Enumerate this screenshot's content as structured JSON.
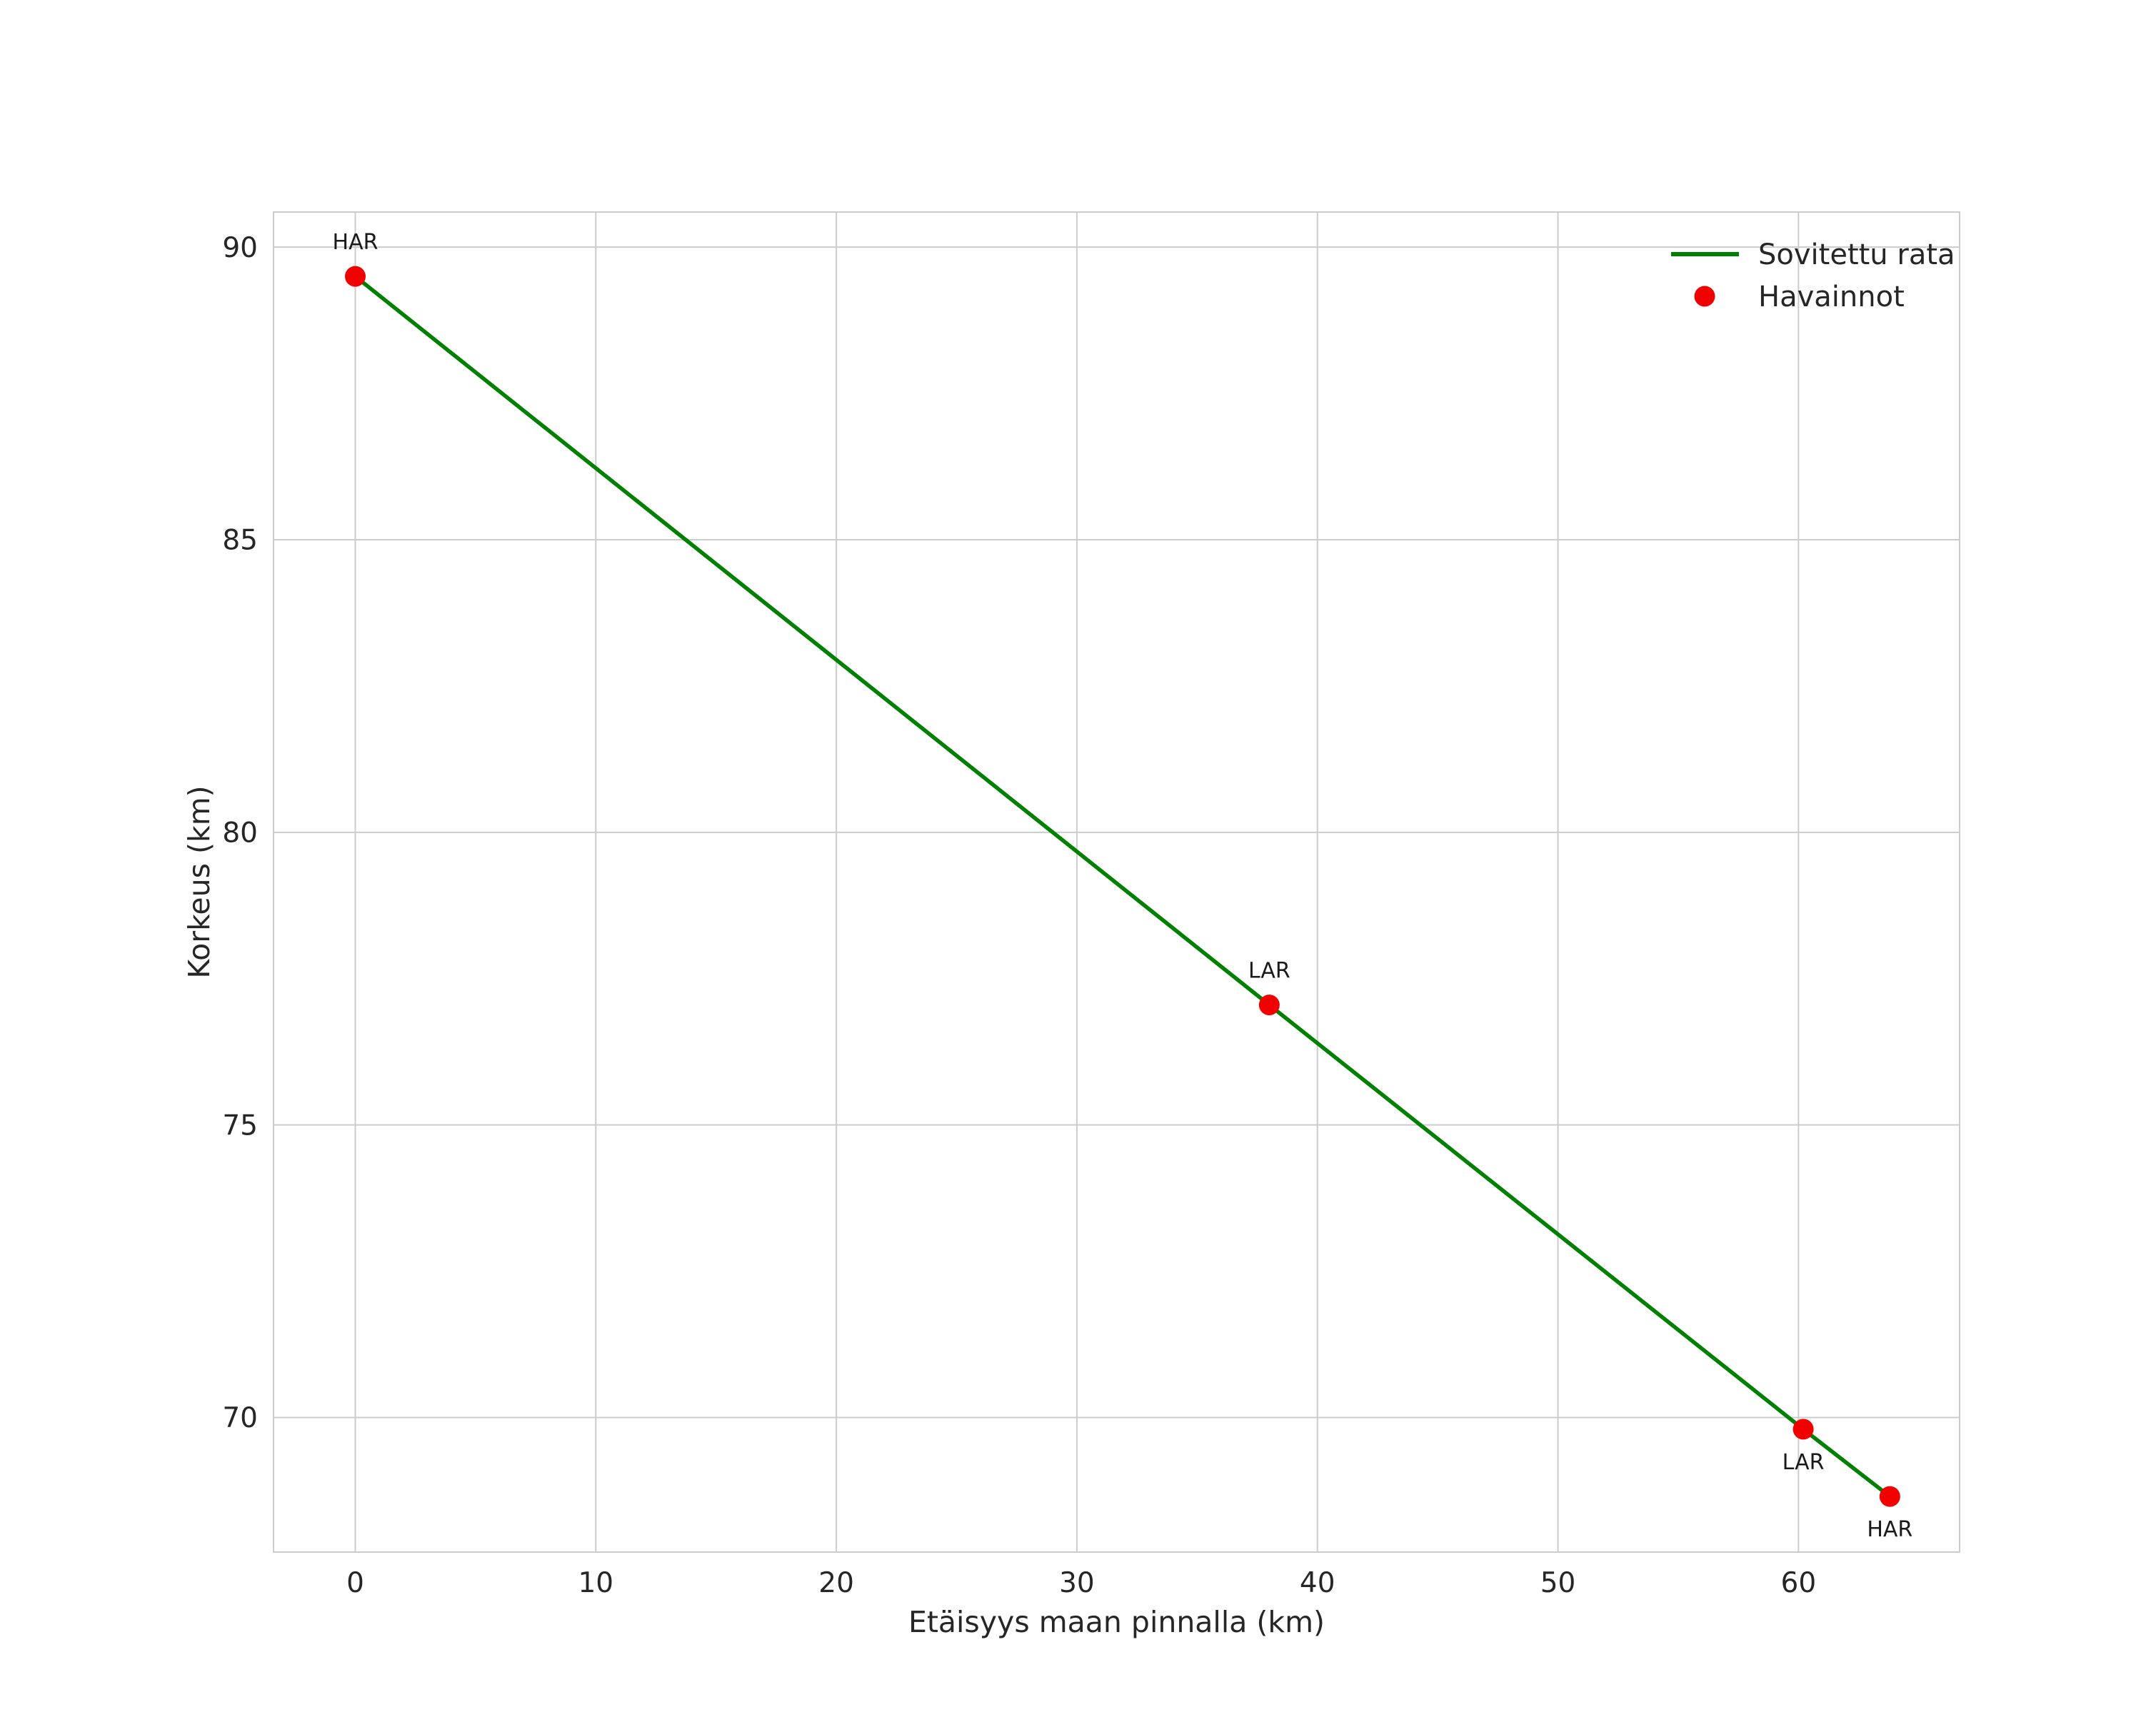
{
  "chart_data": {
    "type": "line",
    "title": "",
    "xlabel": "Etäisyys maan pinnalla (km)",
    "ylabel": "Korkeus (km)",
    "xlim": [
      -3.4,
      66.7
    ],
    "ylim": [
      67.7,
      90.6
    ],
    "x_ticks": [
      0,
      10,
      20,
      30,
      40,
      50,
      60
    ],
    "y_ticks": [
      70,
      75,
      80,
      85,
      90
    ],
    "grid": true,
    "legend": {
      "position": "upper right",
      "entries": [
        {
          "label": "Sovitettu rata",
          "type": "line",
          "color": "#008000"
        },
        {
          "label": "Havainnot",
          "type": "marker",
          "color": "#f20000"
        }
      ]
    },
    "series": [
      {
        "name": "Sovitettu rata",
        "type": "line",
        "color": "#008000",
        "points": [
          [
            0,
            89.5
          ],
          [
            38,
            77.05
          ],
          [
            60.2,
            69.8
          ],
          [
            63.8,
            68.65
          ]
        ]
      },
      {
        "name": "Havainnot",
        "type": "scatter",
        "color": "#f20000",
        "points": [
          {
            "x": 0,
            "y": 89.5,
            "label": "HAR",
            "label_pos": "above"
          },
          {
            "x": 38,
            "y": 77.05,
            "label": "LAR",
            "label_pos": "above"
          },
          {
            "x": 60.2,
            "y": 69.8,
            "label": "LAR",
            "label_pos": "below"
          },
          {
            "x": 63.8,
            "y": 68.65,
            "label": "HAR",
            "label_pos": "below"
          }
        ]
      }
    ],
    "colors": {
      "grid": "#cccccc",
      "frame": "#cccccc",
      "text": "#262626",
      "point_label": "#1a1a1a",
      "background": "#ffffff"
    }
  }
}
